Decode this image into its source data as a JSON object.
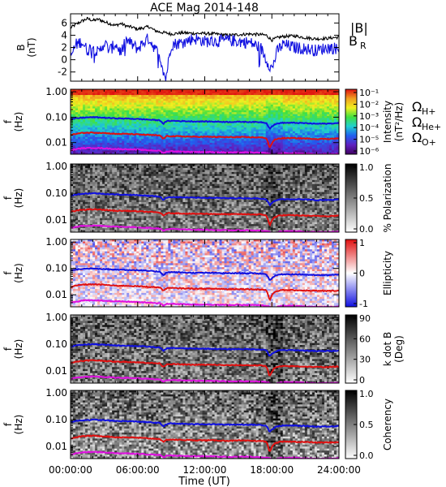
{
  "chart_data": {
    "title": "ACE Mag 2014-148",
    "type": "line",
    "xlabel": "Time (UT)",
    "x_ticks": [
      "00:00:00",
      "06:00:00",
      "12:00:00",
      "18:00:00",
      "24:00:00"
    ],
    "x_range_hours": [
      0,
      24
    ],
    "legend_b": [
      "|B|",
      "B",
      "R"
    ],
    "legend_ion": [
      {
        "omega": "Ω",
        "sub": "H+",
        "color": "#1010e0"
      },
      {
        "omega": "Ω",
        "sub": "He+",
        "color": "#e01010"
      },
      {
        "omega": "Ω",
        "sub": "O+",
        "color": "#e010e0"
      }
    ],
    "panels": [
      {
        "id": "b-field",
        "type": "line",
        "ylabel": [
          "B",
          "(nT)"
        ],
        "ylim": [
          -3.5,
          7.5
        ],
        "yticks": [
          -2,
          0,
          2,
          4,
          6
        ],
        "series": [
          {
            "key": "|B|",
            "color": "#000000",
            "x": [
              0,
              0.5,
              1,
              1.5,
              2,
              2.5,
              3,
              3.5,
              4,
              4.5,
              5,
              5.5,
              6,
              6.5,
              7,
              7.5,
              8,
              8.5,
              9,
              10,
              11,
              12,
              13,
              14,
              15,
              16,
              17,
              17.5,
              18,
              18.5,
              19,
              20,
              21,
              22,
              23,
              24
            ],
            "y": [
              5.2,
              5.8,
              6.3,
              6.7,
              6.4,
              6.6,
              6.2,
              5.9,
              5.6,
              5.9,
              5.5,
              5.3,
              5.0,
              5.2,
              5.4,
              4.8,
              4.5,
              4.4,
              4.2,
              4.4,
              4.3,
              4.3,
              4.2,
              4.0,
              4.1,
              4.2,
              4.1,
              4.0,
              3.2,
              3.6,
              3.8,
              3.9,
              3.6,
              3.4,
              3.5,
              3.7
            ]
          },
          {
            "key": "B",
            "sub": "R",
            "color": "#1010e0",
            "x": [
              0,
              0.5,
              1,
              1.5,
              2,
              2.5,
              3,
              3.5,
              4,
              4.5,
              5,
              5.5,
              6,
              6.5,
              7,
              7.5,
              8,
              8.5,
              9,
              10,
              11,
              12,
              13,
              14,
              15,
              16,
              17,
              17.5,
              18,
              18.5,
              19,
              20,
              21,
              22,
              23,
              24
            ],
            "y": [
              0.5,
              2.5,
              3.0,
              1.5,
              2.2,
              1.0,
              2.8,
              1.5,
              2.6,
              1.2,
              3.2,
              2.5,
              1.8,
              2.8,
              3.5,
              2.0,
              0.5,
              -3.2,
              2.5,
              2.8,
              3.5,
              3.0,
              3.0,
              3.2,
              3.0,
              2.8,
              2.0,
              0.0,
              -1.5,
              1.5,
              2.5,
              2.0,
              1.8,
              1.5,
              2.0,
              1.8
            ]
          }
        ]
      },
      {
        "id": "intensity",
        "type": "heatmap",
        "ylabel": [
          "f",
          "(Hz)"
        ],
        "yscale": "log",
        "ylim": [
          0.0035,
          1.25
        ],
        "yticks": [
          1.0,
          0.1,
          0.01
        ],
        "ytick_labels": [
          "1.00",
          "0.10",
          "0.01"
        ],
        "colorbar": {
          "label": [
            "Intensity",
            "(nT²/Hz)"
          ],
          "ticks": [
            "10⁻¹",
            "10⁻²",
            "10⁻³",
            "10⁻⁴",
            "10⁻⁵",
            "10⁻⁶"
          ],
          "colors": [
            "#e01010",
            "#f0a020",
            "#f0f020",
            "#40e040",
            "#20d0d0",
            "#2060f0",
            "#6020c0",
            "#400060"
          ]
        },
        "lines": "ion"
      },
      {
        "id": "polarization",
        "type": "heatmap",
        "ylabel": [
          "f",
          "(Hz)"
        ],
        "yscale": "log",
        "ylim": [
          0.0035,
          1.25
        ],
        "yticks": [
          1.0,
          0.1,
          0.01
        ],
        "ytick_labels": [
          "1.00",
          "0.10",
          "0.01"
        ],
        "colorbar": {
          "label": [
            "% Polarization"
          ],
          "ticks": [
            "1.0",
            "0.5",
            "0.0"
          ],
          "colors": [
            "#000000",
            "#ffffff"
          ]
        },
        "lines": "ion"
      },
      {
        "id": "ellipticity",
        "type": "heatmap",
        "ylabel": [
          "f",
          "(Hz)"
        ],
        "yscale": "log",
        "ylim": [
          0.0035,
          1.25
        ],
        "yticks": [
          1.0,
          0.1,
          0.01
        ],
        "ytick_labels": [
          "1.00",
          "0.10",
          "0.01"
        ],
        "colorbar": {
          "label": [
            "Ellipticity"
          ],
          "ticks": [
            "1",
            "0",
            "-1"
          ],
          "colors": [
            "#e01010",
            "#ffffff",
            "#1010e0"
          ]
        },
        "lines": "ion"
      },
      {
        "id": "kdotb",
        "type": "heatmap",
        "ylabel": [
          "f",
          "(Hz)"
        ],
        "yscale": "log",
        "ylim": [
          0.0035,
          1.25
        ],
        "yticks": [
          1.0,
          0.1,
          0.01
        ],
        "ytick_labels": [
          "1.00",
          "0.10",
          "0.01"
        ],
        "colorbar": {
          "label": [
            "k dot B",
            "(Deg)"
          ],
          "ticks": [
            "90",
            "60",
            "30",
            "0"
          ],
          "colors": [
            "#000000",
            "#ffffff"
          ]
        },
        "lines": "ion"
      },
      {
        "id": "coherency",
        "type": "heatmap",
        "ylabel": [
          "f",
          "(Hz)"
        ],
        "yscale": "log",
        "ylim": [
          0.0035,
          1.25
        ],
        "yticks": [
          1.0,
          0.1,
          0.01
        ],
        "ytick_labels": [
          "1.00",
          "0.10",
          "0.01"
        ],
        "colorbar": {
          "label": [
            "Coherency"
          ],
          "ticks": [
            "1.0",
            "0.5",
            "0.0"
          ],
          "colors": [
            "#000000",
            "#ffffff"
          ]
        },
        "lines": "ion"
      }
    ],
    "gyro_lines": [
      {
        "name": "H+",
        "color": "#1010e0",
        "x": [
          0,
          0.5,
          1,
          2,
          3,
          4,
          5,
          6,
          7,
          8,
          8.3,
          8.6,
          9,
          10,
          11,
          12,
          13,
          14,
          15,
          16,
          17,
          17.5,
          17.8,
          18.2,
          18.6,
          19,
          20,
          21,
          22,
          23,
          24
        ],
        "y": [
          0.08,
          0.09,
          0.095,
          0.1,
          0.095,
          0.09,
          0.088,
          0.085,
          0.08,
          0.075,
          0.055,
          0.07,
          0.072,
          0.07,
          0.068,
          0.068,
          0.067,
          0.065,
          0.066,
          0.065,
          0.064,
          0.06,
          0.035,
          0.05,
          0.058,
          0.06,
          0.06,
          0.058,
          0.055,
          0.056,
          0.058
        ]
      },
      {
        "name": "He+",
        "color": "#e01010",
        "x": [
          0,
          0.5,
          1,
          2,
          3,
          4,
          5,
          6,
          7,
          8,
          8.3,
          8.6,
          9,
          10,
          11,
          12,
          13,
          14,
          15,
          16,
          17,
          17.5,
          17.8,
          18.2,
          18.6,
          19,
          20,
          21,
          22,
          23,
          24
        ],
        "y": [
          0.02,
          0.022,
          0.024,
          0.025,
          0.024,
          0.022,
          0.022,
          0.021,
          0.02,
          0.019,
          0.014,
          0.018,
          0.018,
          0.0175,
          0.017,
          0.017,
          0.0168,
          0.0163,
          0.0165,
          0.0163,
          0.016,
          0.015,
          0.006,
          0.0125,
          0.0145,
          0.015,
          0.015,
          0.0145,
          0.014,
          0.014,
          0.0145
        ]
      },
      {
        "name": "O+",
        "color": "#e010e0",
        "x": [
          0,
          0.5,
          1,
          2,
          3,
          4,
          5,
          6,
          7,
          8,
          8.3,
          8.6,
          9,
          10,
          11,
          12,
          13,
          14,
          15,
          16,
          17,
          17.5,
          17.8,
          18.2,
          18.6,
          19,
          20,
          21,
          22,
          23,
          24
        ],
        "y": [
          0.005,
          0.0055,
          0.006,
          0.0062,
          0.006,
          0.0056,
          0.0055,
          0.0053,
          0.005,
          0.0048,
          0.0038,
          0.0045,
          0.0046,
          0.0044,
          0.0043,
          0.0043,
          0.0042,
          0.0041,
          0.0041,
          0.0041,
          0.004,
          0.0038,
          0.0036,
          0.0031,
          0.0036,
          0.0038,
          0.0038,
          0.0036,
          0.0035,
          0.0035,
          0.0036
        ]
      }
    ]
  }
}
